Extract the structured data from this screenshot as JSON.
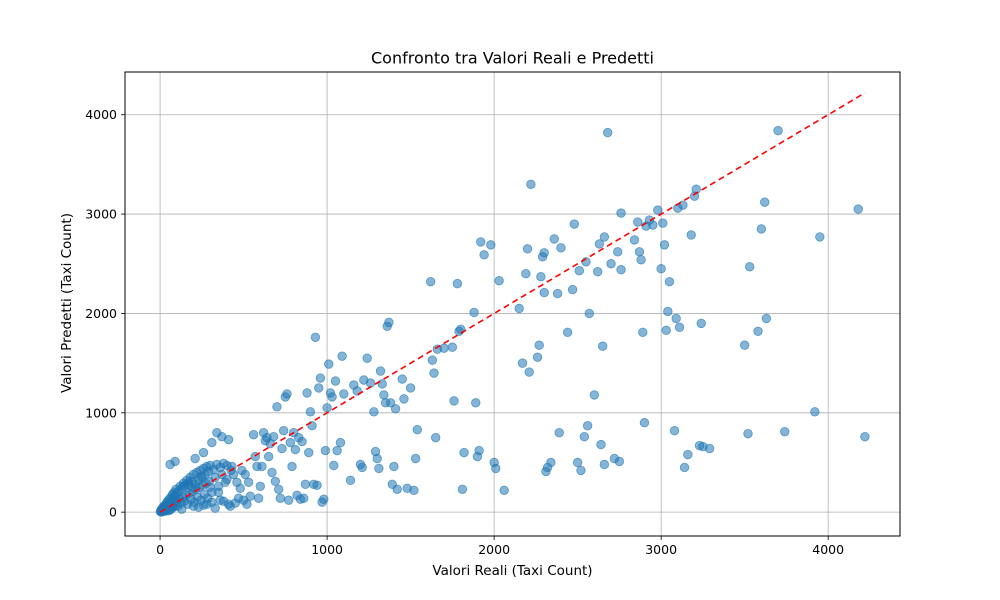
{
  "chart_data": {
    "type": "scatter",
    "title": "Confronto tra Valori Reali e Predetti",
    "xlabel": "Valori Reali (Taxi Count)",
    "ylabel": "Valori Predetti (Taxi Count)",
    "xlim": [
      -210,
      4430
    ],
    "ylim": [
      -240,
      4430
    ],
    "xticks": [
      0,
      1000,
      2000,
      3000,
      4000
    ],
    "yticks": [
      0,
      1000,
      2000,
      3000,
      4000
    ],
    "grid": true,
    "colors": {
      "points": "#1f77b4",
      "reference_line": "#ff0000",
      "grid": "#b0b0b0"
    },
    "reference_line": {
      "label": "",
      "from": [
        0,
        0
      ],
      "to": [
        4220,
        4220
      ],
      "style": "dashed"
    },
    "series": [
      {
        "marker": "circle",
        "alpha": 0.55,
        "points": [
          [
            2,
            5
          ],
          [
            5,
            15
          ],
          [
            8,
            2
          ],
          [
            10,
            30
          ],
          [
            12,
            8
          ],
          [
            15,
            40
          ],
          [
            18,
            12
          ],
          [
            20,
            25
          ],
          [
            22,
            60
          ],
          [
            25,
            18
          ],
          [
            28,
            45
          ],
          [
            30,
            10
          ],
          [
            32,
            70
          ],
          [
            35,
            35
          ],
          [
            38,
            90
          ],
          [
            40,
            20
          ],
          [
            42,
            55
          ],
          [
            45,
            110
          ],
          [
            48,
            30
          ],
          [
            50,
            75
          ],
          [
            52,
            15
          ],
          [
            55,
            130
          ],
          [
            58,
            50
          ],
          [
            60,
            95
          ],
          [
            62,
            25
          ],
          [
            65,
            150
          ],
          [
            68,
            70
          ],
          [
            70,
            115
          ],
          [
            72,
            40
          ],
          [
            75,
            180
          ],
          [
            78,
            85
          ],
          [
            80,
            140
          ],
          [
            82,
            55
          ],
          [
            85,
            200
          ],
          [
            88,
            100
          ],
          [
            90,
            160
          ],
          [
            92,
            70
          ],
          [
            95,
            230
          ],
          [
            98,
            120
          ],
          [
            100,
            185
          ],
          [
            105,
            60
          ],
          [
            110,
            210
          ],
          [
            115,
            130
          ],
          [
            120,
            260
          ],
          [
            125,
            90
          ],
          [
            130,
            240
          ],
          [
            135,
            150
          ],
          [
            140,
            290
          ],
          [
            145,
            110
          ],
          [
            150,
            270
          ],
          [
            155,
            170
          ],
          [
            160,
            320
          ],
          [
            165,
            80
          ],
          [
            170,
            300
          ],
          [
            175,
            190
          ],
          [
            180,
            350
          ],
          [
            185,
            130
          ],
          [
            190,
            250
          ],
          [
            195,
            210
          ],
          [
            200,
            380
          ],
          [
            205,
            100
          ],
          [
            210,
            280
          ],
          [
            215,
            230
          ],
          [
            220,
            400
          ],
          [
            225,
            150
          ],
          [
            230,
            320
          ],
          [
            235,
            250
          ],
          [
            240,
            420
          ],
          [
            245,
            120
          ],
          [
            250,
            350
          ],
          [
            255,
            270
          ],
          [
            260,
            440
          ],
          [
            265,
            180
          ],
          [
            270,
            380
          ],
          [
            275,
            290
          ],
          [
            280,
            460
          ],
          [
            285,
            140
          ],
          [
            290,
            410
          ],
          [
            295,
            310
          ],
          [
            300,
            470
          ],
          [
            310,
            200
          ],
          [
            320,
            430
          ],
          [
            330,
            350
          ],
          [
            340,
            480
          ],
          [
            350,
            260
          ],
          [
            360,
            450
          ],
          [
            370,
            380
          ],
          [
            380,
            490
          ],
          [
            390,
            300
          ],
          [
            400,
            470
          ],
          [
            60,
            480
          ],
          [
            90,
            510
          ],
          [
            170,
            280
          ],
          [
            230,
            50
          ],
          [
            280,
            80
          ],
          [
            330,
            40
          ],
          [
            380,
            110
          ],
          [
            420,
            60
          ],
          [
            450,
            90
          ],
          [
            470,
            140
          ],
          [
            130,
            30
          ],
          [
            200,
            60
          ],
          [
            260,
            70
          ],
          [
            310,
            100
          ],
          [
            360,
            120
          ],
          [
            410,
            80
          ],
          [
            140,
            260
          ],
          [
            195,
            310
          ],
          [
            245,
            360
          ],
          [
            300,
            250
          ],
          [
            350,
            200
          ],
          [
            400,
            330
          ],
          [
            425,
            420
          ],
          [
            430,
            460
          ],
          [
            440,
            380
          ],
          [
            460,
            300
          ],
          [
            480,
            240
          ],
          [
            500,
            120
          ],
          [
            520,
            80
          ],
          [
            540,
            160
          ],
          [
            210,
            540
          ],
          [
            260,
            600
          ],
          [
            310,
            700
          ],
          [
            340,
            800
          ],
          [
            370,
            760
          ],
          [
            410,
            730
          ],
          [
            490,
            420
          ],
          [
            510,
            380
          ],
          [
            530,
            300
          ],
          [
            560,
            780
          ],
          [
            570,
            560
          ],
          [
            580,
            460
          ],
          [
            590,
            140
          ],
          [
            600,
            260
          ],
          [
            610,
            460
          ],
          [
            620,
            800
          ],
          [
            630,
            720
          ],
          [
            640,
            750
          ],
          [
            650,
            560
          ],
          [
            660,
            690
          ],
          [
            670,
            400
          ],
          [
            680,
            760
          ],
          [
            690,
            310
          ],
          [
            700,
            1060
          ],
          [
            710,
            230
          ],
          [
            720,
            140
          ],
          [
            730,
            640
          ],
          [
            740,
            820
          ],
          [
            750,
            1160
          ],
          [
            760,
            1190
          ],
          [
            770,
            120
          ],
          [
            780,
            700
          ],
          [
            790,
            460
          ],
          [
            800,
            800
          ],
          [
            810,
            630
          ],
          [
            820,
            170
          ],
          [
            830,
            750
          ],
          [
            840,
            130
          ],
          [
            850,
            710
          ],
          [
            860,
            140
          ],
          [
            870,
            280
          ],
          [
            880,
            1200
          ],
          [
            890,
            600
          ],
          [
            900,
            1010
          ],
          [
            910,
            870
          ],
          [
            920,
            280
          ],
          [
            930,
            1760
          ],
          [
            940,
            270
          ],
          [
            950,
            1250
          ],
          [
            960,
            1350
          ],
          [
            970,
            100
          ],
          [
            980,
            130
          ],
          [
            990,
            620
          ],
          [
            1000,
            1050
          ],
          [
            1010,
            1490
          ],
          [
            1020,
            1200
          ],
          [
            1030,
            1160
          ],
          [
            1040,
            470
          ],
          [
            1050,
            1320
          ],
          [
            1060,
            620
          ],
          [
            1080,
            700
          ],
          [
            1090,
            1570
          ],
          [
            1100,
            1190
          ],
          [
            1140,
            320
          ],
          [
            1160,
            1280
          ],
          [
            1180,
            1220
          ],
          [
            1200,
            480
          ],
          [
            1210,
            450
          ],
          [
            1220,
            1330
          ],
          [
            1240,
            1550
          ],
          [
            1260,
            1300
          ],
          [
            1280,
            1010
          ],
          [
            1290,
            610
          ],
          [
            1300,
            540
          ],
          [
            1310,
            440
          ],
          [
            1320,
            1420
          ],
          [
            1330,
            1290
          ],
          [
            1340,
            1180
          ],
          [
            1350,
            1100
          ],
          [
            1360,
            1870
          ],
          [
            1370,
            1910
          ],
          [
            1380,
            1100
          ],
          [
            1390,
            280
          ],
          [
            1400,
            460
          ],
          [
            1410,
            1040
          ],
          [
            1420,
            230
          ],
          [
            1450,
            1340
          ],
          [
            1460,
            1140
          ],
          [
            1480,
            240
          ],
          [
            1500,
            1250
          ],
          [
            1520,
            220
          ],
          [
            1530,
            540
          ],
          [
            1540,
            830
          ],
          [
            1620,
            2320
          ],
          [
            1630,
            1530
          ],
          [
            1640,
            1400
          ],
          [
            1650,
            750
          ],
          [
            1660,
            1640
          ],
          [
            1700,
            1650
          ],
          [
            1750,
            1660
          ],
          [
            1760,
            1120
          ],
          [
            1780,
            2300
          ],
          [
            1790,
            1820
          ],
          [
            1800,
            1840
          ],
          [
            1810,
            230
          ],
          [
            1820,
            600
          ],
          [
            1880,
            2010
          ],
          [
            1890,
            1100
          ],
          [
            1900,
            560
          ],
          [
            1910,
            620
          ],
          [
            1920,
            2720
          ],
          [
            1940,
            2590
          ],
          [
            1980,
            2690
          ],
          [
            2000,
            500
          ],
          [
            2010,
            440
          ],
          [
            2030,
            2330
          ],
          [
            2060,
            220
          ],
          [
            2150,
            2050
          ],
          [
            2170,
            1500
          ],
          [
            2190,
            2400
          ],
          [
            2200,
            2650
          ],
          [
            2210,
            1410
          ],
          [
            2220,
            3300
          ],
          [
            2260,
            1560
          ],
          [
            2270,
            1680
          ],
          [
            2280,
            2370
          ],
          [
            2290,
            2570
          ],
          [
            2300,
            2610
          ],
          [
            2300,
            2210
          ],
          [
            2310,
            410
          ],
          [
            2320,
            450
          ],
          [
            2340,
            500
          ],
          [
            2360,
            2750
          ],
          [
            2380,
            2200
          ],
          [
            2390,
            800
          ],
          [
            2400,
            2660
          ],
          [
            2440,
            1810
          ],
          [
            2470,
            2240
          ],
          [
            2480,
            2900
          ],
          [
            2500,
            500
          ],
          [
            2510,
            2430
          ],
          [
            2520,
            420
          ],
          [
            2540,
            760
          ],
          [
            2550,
            2520
          ],
          [
            2560,
            870
          ],
          [
            2570,
            2000
          ],
          [
            2600,
            1180
          ],
          [
            2620,
            2420
          ],
          [
            2630,
            2700
          ],
          [
            2640,
            680
          ],
          [
            2650,
            1670
          ],
          [
            2660,
            480
          ],
          [
            2660,
            2770
          ],
          [
            2680,
            3820
          ],
          [
            2700,
            2500
          ],
          [
            2720,
            540
          ],
          [
            2740,
            2620
          ],
          [
            2750,
            510
          ],
          [
            2760,
            3010
          ],
          [
            2760,
            2440
          ],
          [
            2840,
            2740
          ],
          [
            2860,
            2920
          ],
          [
            2870,
            2620
          ],
          [
            2880,
            2540
          ],
          [
            2890,
            1810
          ],
          [
            2900,
            900
          ],
          [
            2910,
            2880
          ],
          [
            2930,
            2940
          ],
          [
            2950,
            2890
          ],
          [
            2980,
            3040
          ],
          [
            3000,
            2450
          ],
          [
            3010,
            2910
          ],
          [
            3020,
            2690
          ],
          [
            3030,
            1830
          ],
          [
            3040,
            2020
          ],
          [
            3050,
            2320
          ],
          [
            3080,
            820
          ],
          [
            3090,
            1950
          ],
          [
            3100,
            3060
          ],
          [
            3110,
            1860
          ],
          [
            3130,
            3090
          ],
          [
            3140,
            450
          ],
          [
            3160,
            580
          ],
          [
            3180,
            2790
          ],
          [
            3200,
            3180
          ],
          [
            3210,
            3250
          ],
          [
            3230,
            670
          ],
          [
            3240,
            1900
          ],
          [
            3250,
            660
          ],
          [
            3290,
            640
          ],
          [
            3500,
            1680
          ],
          [
            3520,
            790
          ],
          [
            3530,
            2470
          ],
          [
            3580,
            1820
          ],
          [
            3600,
            2850
          ],
          [
            3620,
            3120
          ],
          [
            3630,
            1950
          ],
          [
            3700,
            3840
          ],
          [
            3740,
            810
          ],
          [
            3920,
            1010
          ],
          [
            3950,
            2770
          ],
          [
            4180,
            3050
          ],
          [
            4220,
            760
          ]
        ]
      }
    ]
  }
}
